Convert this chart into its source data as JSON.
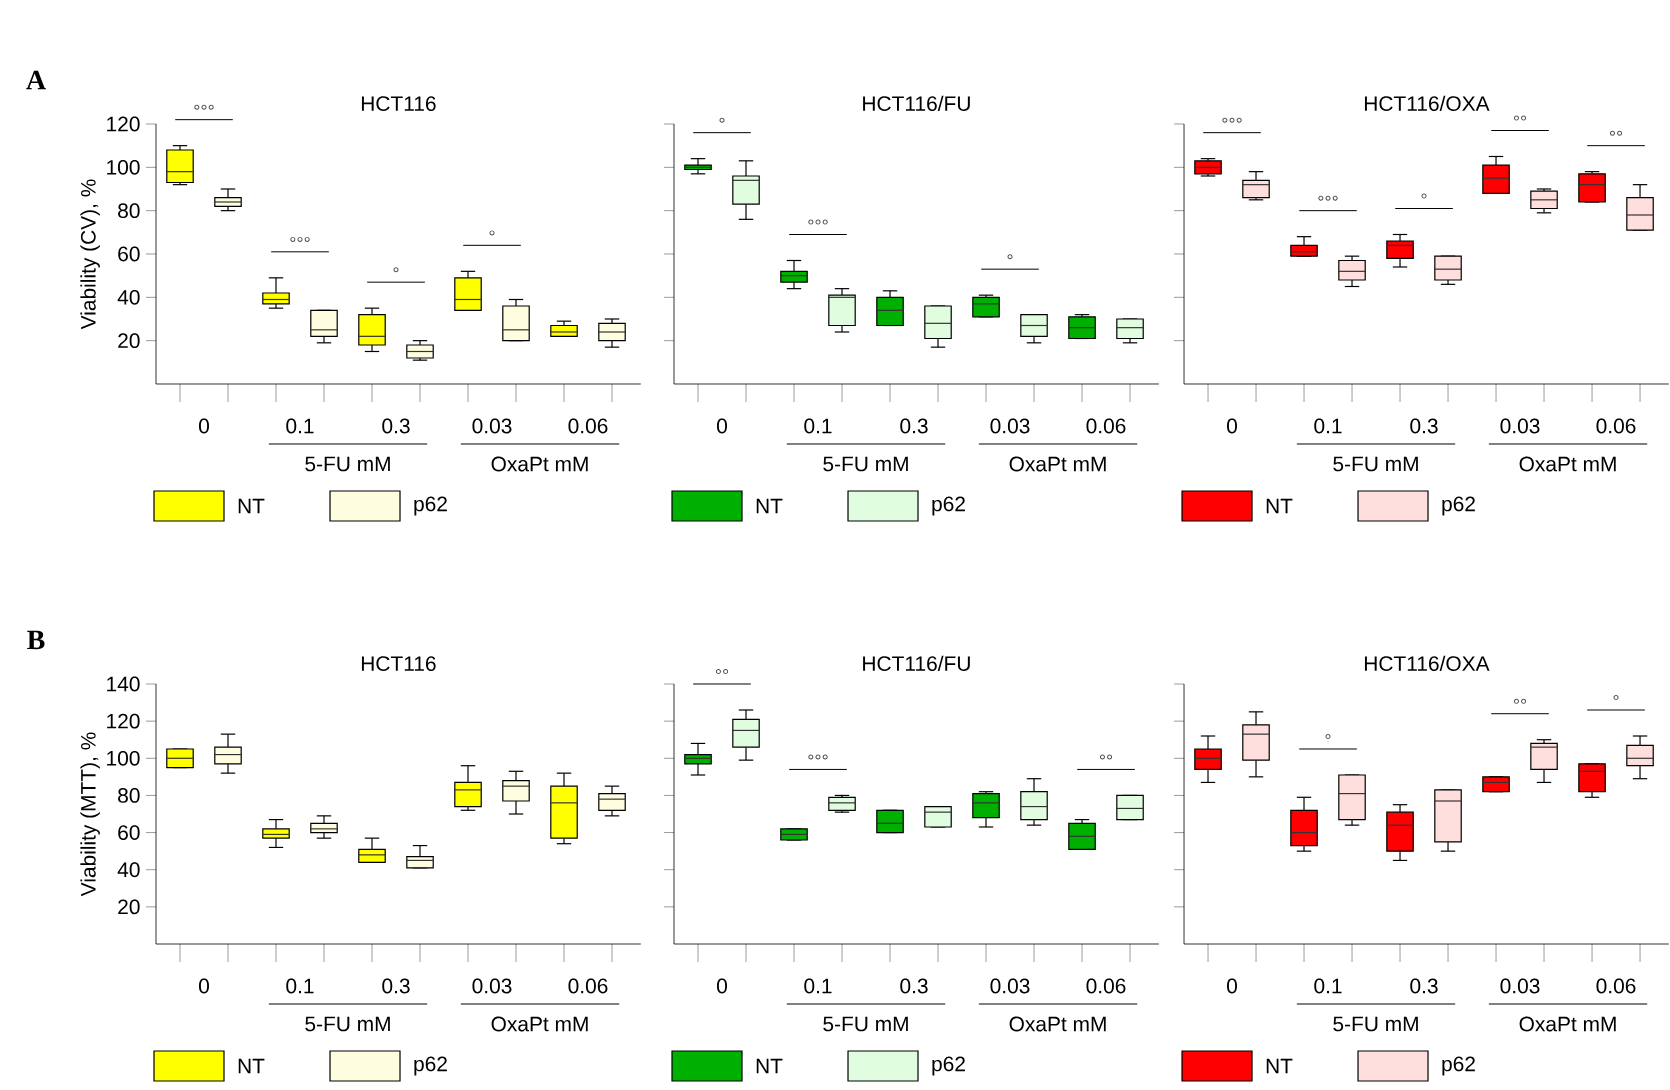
{
  "chart_data": [
    {
      "type": "box",
      "subtitle": "A",
      "title": "HCT116",
      "ylabel": "Viability (CV), %",
      "categories": [
        "0",
        "0.1",
        "0.3",
        "0.03",
        "0.06"
      ],
      "ylim": [
        0,
        120
      ],
      "yticks": [
        20,
        40,
        60,
        80,
        100,
        120
      ],
      "legend": "bottom",
      "series": [
        {
          "name": "NT",
          "color": "#ffff00",
          "boxes": [
            {
              "low": 92,
              "q1": 93,
              "median": 98,
              "q3": 108,
              "high": 110
            },
            {
              "low": 35,
              "q1": 37,
              "median": 39,
              "q3": 42,
              "high": 49
            },
            {
              "low": 15,
              "q1": 18,
              "median": 22,
              "q3": 32,
              "high": 35
            },
            {
              "low": 34,
              "q1": 34,
              "median": 39,
              "q3": 49,
              "high": 52
            },
            {
              "low": 22,
              "q1": 22,
              "median": 24,
              "q3": 27,
              "high": 29
            }
          ]
        },
        {
          "name": "p62",
          "color": "#fffde0",
          "boxes": [
            {
              "low": 80,
              "q1": 82,
              "median": 84,
              "q3": 86,
              "high": 90
            },
            {
              "low": 19,
              "q1": 22,
              "median": 25,
              "q3": 34,
              "high": 34
            },
            {
              "low": 11,
              "q1": 12,
              "median": 15,
              "q3": 18,
              "high": 20
            },
            {
              "low": 20,
              "q1": 20,
              "median": 25,
              "q3": 36,
              "high": 39
            },
            {
              "low": 17,
              "q1": 20,
              "median": 24,
              "q3": 28,
              "high": 30
            }
          ]
        }
      ],
      "annotations": [
        "°°°",
        "°°°",
        "°",
        "°",
        null,
        "5-FU mM",
        "OxaPt mM"
      ]
    },
    {
      "type": "box",
      "title": "HCT116/FU",
      "categories": [
        "0",
        "0.1",
        "0.3",
        "0.03",
        "0.06"
      ],
      "ylim": [
        0,
        120
      ],
      "yticks": [
        20,
        40,
        60,
        80,
        100,
        120
      ],
      "tick_labels": "x",
      "legend": "bottom",
      "series": [
        {
          "name": "NT",
          "color": "#00b000",
          "boxes": [
            {
              "low": 97,
              "q1": 99,
              "median": 100,
              "q3": 101,
              "high": 104
            },
            {
              "low": 44,
              "q1": 47,
              "median": 50,
              "q3": 52,
              "high": 57
            },
            {
              "low": 27,
              "q1": 27,
              "median": 34,
              "q3": 40,
              "high": 43
            },
            {
              "low": 31,
              "q1": 31,
              "median": 37,
              "q3": 40,
              "high": 41
            },
            {
              "low": 21,
              "q1": 21,
              "median": 26,
              "q3": 31,
              "high": 32
            }
          ]
        },
        {
          "name": "p62",
          "color": "#e0fde0",
          "boxes": [
            {
              "low": 76,
              "q1": 83,
              "median": 94,
              "q3": 96,
              "high": 103
            },
            {
              "low": 24,
              "q1": 27,
              "median": 40,
              "q3": 41,
              "high": 44
            },
            {
              "low": 17,
              "q1": 21,
              "median": 28,
              "q3": 36,
              "high": 36
            },
            {
              "low": 19,
              "q1": 22,
              "median": 27,
              "q3": 32,
              "high": 32
            },
            {
              "low": 19,
              "q1": 21,
              "median": 26,
              "q3": 30,
              "high": 30
            }
          ]
        }
      ],
      "annotations": [
        "°",
        "°°°",
        null,
        "°",
        null,
        "5-FU mM",
        "OxaPt mM"
      ]
    },
    {
      "type": "box",
      "title": "HCT116/OXA",
      "categories": [
        "0",
        "0.1",
        "0.3",
        "0.03",
        "0.06"
      ],
      "ylim": [
        0,
        120
      ],
      "yticks": [
        20,
        40,
        60,
        80,
        100,
        120
      ],
      "tick_labels": "x",
      "legend": "bottom",
      "series": [
        {
          "name": "NT",
          "color": "#ff0000",
          "boxes": [
            {
              "low": 96,
              "q1": 97,
              "median": 100,
              "q3": 103,
              "high": 104
            },
            {
              "low": 59,
              "q1": 59,
              "median": 61,
              "q3": 64,
              "high": 68
            },
            {
              "low": 54,
              "q1": 58,
              "median": 64,
              "q3": 66,
              "high": 69
            },
            {
              "low": 88,
              "q1": 88,
              "median": 95,
              "q3": 101,
              "high": 105
            },
            {
              "low": 84,
              "q1": 84,
              "median": 92,
              "q3": 97,
              "high": 98
            }
          ]
        },
        {
          "name": "p62",
          "color": "#ffdede",
          "boxes": [
            {
              "low": 85,
              "q1": 86,
              "median": 92,
              "q3": 94,
              "high": 98
            },
            {
              "low": 45,
              "q1": 48,
              "median": 52,
              "q3": 57,
              "high": 59
            },
            {
              "low": 46,
              "q1": 48,
              "median": 53,
              "q3": 59,
              "high": 59
            },
            {
              "low": 79,
              "q1": 81,
              "median": 85,
              "q3": 89,
              "high": 90
            },
            {
              "low": 71,
              "q1": 71,
              "median": 78,
              "q3": 86,
              "high": 92
            }
          ]
        }
      ],
      "annotations": [
        "°°°",
        "°°°",
        "°",
        "°°",
        "°°",
        "5-FU mM",
        "OxaPt mM"
      ]
    },
    {
      "type": "box",
      "subtitle": "B",
      "title": "HCT116",
      "ylabel": "Viability (MTT), %",
      "categories": [
        "0",
        "0.1",
        "0.3",
        "0.03",
        "0.06"
      ],
      "ylim": [
        0,
        140
      ],
      "yticks": [
        20,
        40,
        60,
        80,
        100,
        120,
        140
      ],
      "legend": "bottom",
      "series": [
        {
          "name": "NT",
          "color": "#ffff00",
          "boxes": [
            {
              "low": 95,
              "q1": 95,
              "median": 100,
              "q3": 105,
              "high": 105
            },
            {
              "low": 52,
              "q1": 57,
              "median": 59,
              "q3": 62,
              "high": 67
            },
            {
              "low": 44,
              "q1": 44,
              "median": 48,
              "q3": 51,
              "high": 57
            },
            {
              "low": 72,
              "q1": 74,
              "median": 83,
              "q3": 87,
              "high": 96
            },
            {
              "low": 54,
              "q1": 57,
              "median": 76,
              "q3": 85,
              "high": 92
            }
          ]
        },
        {
          "name": "p62",
          "color": "#fffde0",
          "boxes": [
            {
              "low": 92,
              "q1": 97,
              "median": 102,
              "q3": 106,
              "high": 113
            },
            {
              "low": 57,
              "q1": 60,
              "median": 62,
              "q3": 65,
              "high": 69
            },
            {
              "low": 41,
              "q1": 41,
              "median": 45,
              "q3": 47,
              "high": 53
            },
            {
              "low": 70,
              "q1": 77,
              "median": 85,
              "q3": 88,
              "high": 93
            },
            {
              "low": 69,
              "q1": 72,
              "median": 78,
              "q3": 81,
              "high": 85
            }
          ]
        }
      ],
      "annotations": [
        null,
        null,
        null,
        null,
        null,
        "5-FU mM",
        "OxaPt mM"
      ]
    },
    {
      "type": "box",
      "title": "HCT116/FU",
      "categories": [
        "0",
        "0.1",
        "0.3",
        "0.03",
        "0.06"
      ],
      "ylim": [
        0,
        140
      ],
      "yticks": [
        20,
        40,
        60,
        80,
        100,
        120,
        140
      ],
      "tick_labels": "x",
      "legend": "bottom",
      "series": [
        {
          "name": "NT",
          "color": "#00b000",
          "boxes": [
            {
              "low": 91,
              "q1": 97,
              "median": 100,
              "q3": 102,
              "high": 108
            },
            {
              "low": 56,
              "q1": 56,
              "median": 59,
              "q3": 62,
              "high": 62
            },
            {
              "low": 60,
              "q1": 60,
              "median": 65,
              "q3": 72,
              "high": 72
            },
            {
              "low": 63,
              "q1": 68,
              "median": 76,
              "q3": 81,
              "high": 82
            },
            {
              "low": 51,
              "q1": 51,
              "median": 58,
              "q3": 65,
              "high": 67
            }
          ]
        },
        {
          "name": "p62",
          "color": "#e0fde0",
          "boxes": [
            {
              "low": 99,
              "q1": 106,
              "median": 115,
              "q3": 121,
              "high": 126
            },
            {
              "low": 71,
              "q1": 72,
              "median": 76,
              "q3": 79,
              "high": 80
            },
            {
              "low": 63,
              "q1": 63,
              "median": 71,
              "q3": 74,
              "high": 74
            },
            {
              "low": 64,
              "q1": 67,
              "median": 74,
              "q3": 82,
              "high": 89
            },
            {
              "low": 67,
              "q1": 67,
              "median": 73,
              "q3": 80,
              "high": 80
            }
          ]
        }
      ],
      "annotations": [
        "°°",
        "°°°",
        null,
        null,
        "°°",
        "5-FU mM",
        "OxaPt mM"
      ]
    },
    {
      "type": "box",
      "title": "HCT116/OXA",
      "categories": [
        "0",
        "0.1",
        "0.3",
        "0.03",
        "0.06"
      ],
      "ylim": [
        0,
        140
      ],
      "yticks": [
        20,
        40,
        60,
        80,
        100,
        120,
        140
      ],
      "tick_labels": "x",
      "legend": "bottom",
      "series": [
        {
          "name": "NT",
          "color": "#ff0000",
          "boxes": [
            {
              "low": 87,
              "q1": 94,
              "median": 100,
              "q3": 105,
              "high": 112
            },
            {
              "low": 50,
              "q1": 53,
              "median": 60,
              "q3": 72,
              "high": 79
            },
            {
              "low": 45,
              "q1": 50,
              "median": 64,
              "q3": 71,
              "high": 75
            },
            {
              "low": 82,
              "q1": 82,
              "median": 87,
              "q3": 90,
              "high": 90
            },
            {
              "low": 79,
              "q1": 82,
              "median": 93,
              "q3": 97,
              "high": 97
            }
          ]
        },
        {
          "name": "p62",
          "color": "#ffdede",
          "boxes": [
            {
              "low": 90,
              "q1": 99,
              "median": 113,
              "q3": 118,
              "high": 125
            },
            {
              "low": 64,
              "q1": 67,
              "median": 81,
              "q3": 91,
              "high": 91
            },
            {
              "low": 50,
              "q1": 55,
              "median": 77,
              "q3": 83,
              "high": 83
            },
            {
              "low": 87,
              "q1": 94,
              "median": 106,
              "q3": 108,
              "high": 110
            },
            {
              "low": 89,
              "q1": 96,
              "median": 100,
              "q3": 107,
              "high": 112
            }
          ]
        }
      ],
      "annotations": [
        null,
        "°",
        null,
        "°°",
        "°",
        "5-FU mM",
        "OxaPt mM"
      ]
    }
  ]
}
